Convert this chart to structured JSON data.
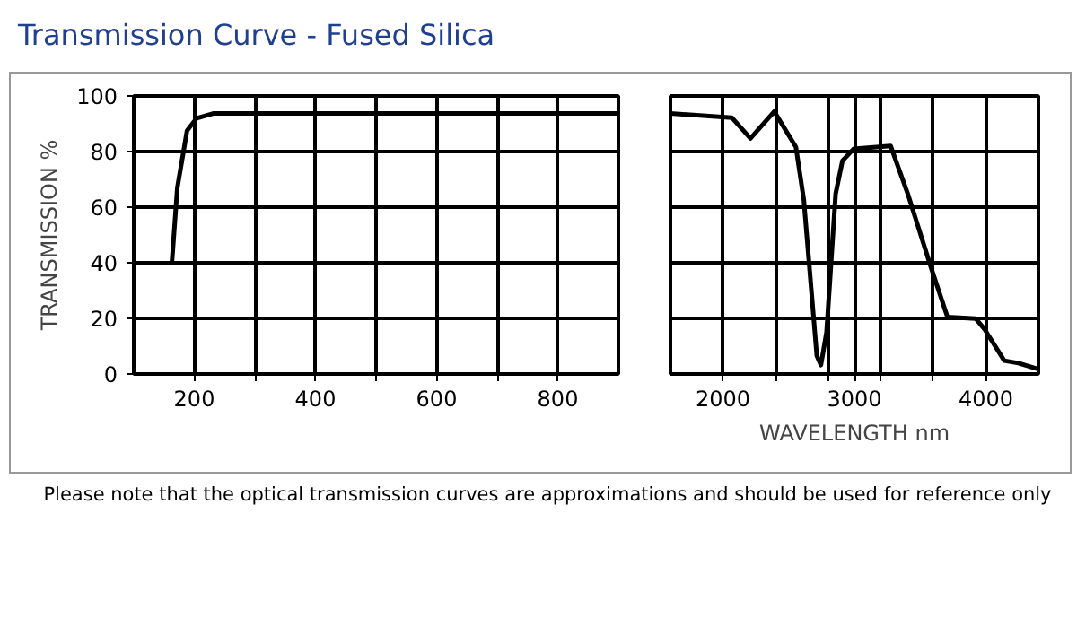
{
  "chart_data": [
    {
      "type": "line",
      "title": "Transmission Curve - Fused Silica",
      "ylabel": "TRANSMISSION %",
      "color": "#000000",
      "x": [
        163,
        172,
        188,
        204,
        231,
        900
      ],
      "values": [
        40,
        67,
        87.5,
        92,
        93.7,
        93.7
      ],
      "xlim": [
        100,
        900
      ],
      "ylim": [
        0,
        100
      ],
      "xticks": [
        200,
        {
          "value": 300,
          "label": null
        },
        400,
        {
          "value": 500,
          "label": null
        },
        600,
        {
          "value": 700,
          "label": null
        },
        800
      ],
      "yticks": [
        0,
        20,
        40,
        60,
        80,
        100
      ],
      "grid": true
    },
    {
      "type": "line",
      "xlabel": "WAVELENGTH nm",
      "color": "#000000",
      "annotations": [
        "Please note that the optical transmission curves are approximations and should be used for reference only"
      ],
      "x": [
        1600,
        2067,
        2209,
        2390,
        2555,
        2615,
        2714,
        2745,
        2788,
        2857,
        2909,
        2995,
        3276,
        3406,
        3579,
        3708,
        3924,
        3989,
        4140,
        4248,
        4400
      ],
      "values": [
        93.7,
        92.2,
        84.7,
        94.4,
        81.6,
        62.6,
        6.5,
        3.2,
        15,
        64.8,
        76.7,
        81,
        82,
        64.8,
        38.9,
        20.5,
        19.9,
        16.2,
        4.8,
        3.9,
        1.7
      ],
      "xlim": [
        1600,
        4400
      ],
      "ylim": [
        0,
        100
      ],
      "xticks": [
        2000,
        {
          "value": 2400,
          "label": null
        },
        {
          "value": 2800,
          "label": null
        },
        3000,
        {
          "value": 3200,
          "label": null
        },
        {
          "value": 3600,
          "label": null
        },
        4000
      ],
      "yticks": [
        0,
        20,
        40,
        60,
        80,
        100
      ],
      "grid": true,
      "tick_labels": "x"
    }
  ]
}
